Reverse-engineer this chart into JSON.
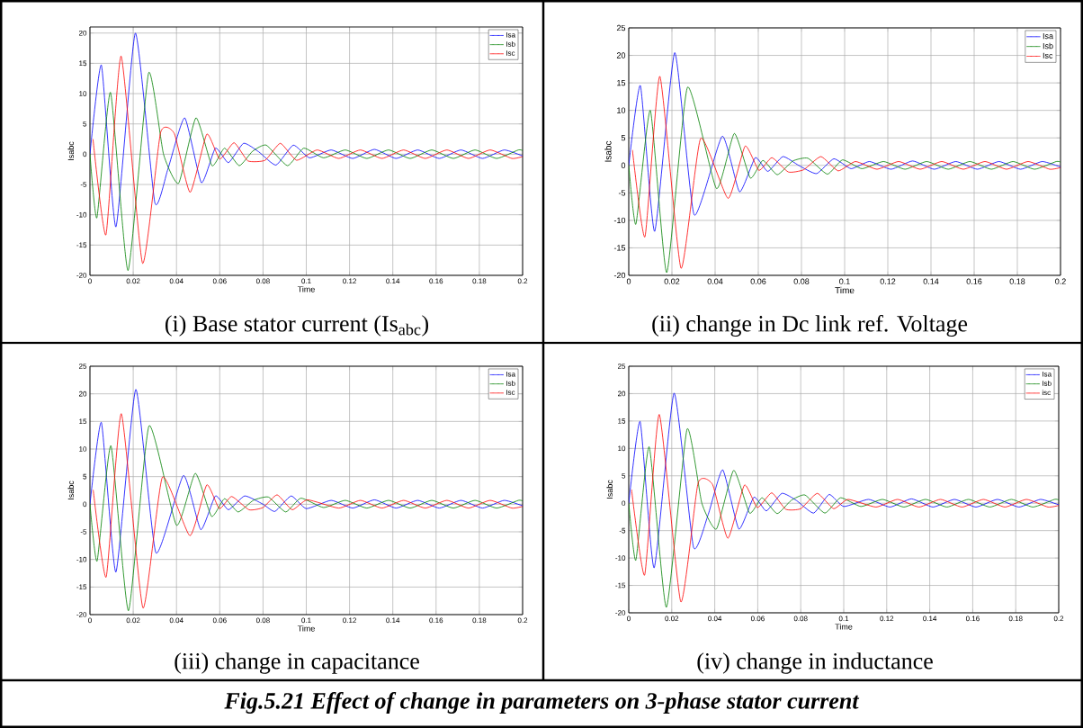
{
  "chart_data": [
    {
      "type": "line",
      "title": "(i) Base stator current (Is$_{abc}$)",
      "xlabel": "Time",
      "ylabel": "Isabc",
      "xlim": [
        0,
        0.2
      ],
      "ylim": [
        -20,
        21
      ],
      "xticks": [
        0,
        0.02,
        0.04,
        0.06,
        0.08,
        0.1,
        0.12,
        0.14,
        0.16,
        0.18,
        0.2
      ],
      "yticks": [
        -20,
        -15,
        -10,
        -5,
        0,
        5,
        10,
        15,
        20
      ],
      "grid": true,
      "legend": "top right",
      "series": [
        {
          "name": "Isa",
          "color": "#0000ff",
          "x": [
            0,
            0.0053,
            0.012,
            0.021,
            0.03,
            0.036,
            0.0438,
            0.0515,
            0.058,
            0.064,
            0.071,
            0.078,
            0.086,
            0.094,
            0.1015,
            0.1115,
            0.1215,
            0.1315,
            0.1415,
            0.1515,
            0.1615,
            0.1715,
            0.1815,
            0.1915,
            0.2
          ],
          "values": [
            0,
            14.7,
            -12,
            20,
            -8,
            -2.5,
            6,
            -4.7,
            1,
            -1.4,
            1.8,
            0.4,
            -1.8,
            1.5,
            -0.6,
            0.7,
            -0.7,
            0.8,
            -0.7,
            0.7,
            -0.7,
            0.7,
            -0.7,
            0.7,
            -0.3
          ]
        },
        {
          "name": "Isb",
          "color": "#008000",
          "x": [
            0,
            0.0032,
            0.0095,
            0.0176,
            0.0271,
            0.034,
            0.041,
            0.049,
            0.0564,
            0.0622,
            0.069,
            0.0752,
            0.0815,
            0.0913,
            0.0988,
            0.108,
            0.118,
            0.128,
            0.138,
            0.148,
            0.158,
            0.168,
            0.178,
            0.188,
            0.198,
            0.2
          ],
          "values": [
            0,
            -10.5,
            10.2,
            -19.2,
            13.4,
            0,
            -4.8,
            6,
            -1.9,
            1,
            -1.9,
            0.5,
            1.5,
            -1.9,
            1,
            -0.6,
            0.7,
            -0.7,
            0.7,
            -0.7,
            0.7,
            -0.7,
            0.7,
            -0.7,
            0.7,
            0.6
          ]
        },
        {
          "name": "Isc",
          "color": "#ff0000",
          "x": [
            0.0014,
            0.0074,
            0.0144,
            0.0243,
            0.0326,
            0.039,
            0.0463,
            0.054,
            0.06,
            0.0666,
            0.073,
            0.081,
            0.088,
            0.0955,
            0.105,
            0.115,
            0.125,
            0.135,
            0.145,
            0.155,
            0.165,
            0.175,
            0.185,
            0.195,
            0.2
          ],
          "values": [
            2.5,
            -13.3,
            16.2,
            -18,
            3.5,
            3.4,
            -6.3,
            3.3,
            -0.8,
            1.9,
            -1.1,
            -1.0,
            1.8,
            -1.0,
            0.7,
            -0.7,
            0.7,
            -0.7,
            0.7,
            -0.7,
            0.7,
            -0.7,
            0.7,
            -0.7,
            -0.4
          ]
        }
      ]
    },
    {
      "type": "line",
      "title": "(ii) change in Dc link ref. Voltage",
      "xlabel": "Time",
      "ylabel": "Isabc",
      "xlim": [
        0,
        0.2
      ],
      "ylim": [
        -20,
        25
      ],
      "xticks": [
        0,
        0.02,
        0.04,
        0.06,
        0.08,
        0.1,
        0.12,
        0.14,
        0.16,
        0.18,
        0.2
      ],
      "yticks": [
        -20,
        -15,
        -10,
        -5,
        0,
        5,
        10,
        15,
        20,
        25
      ],
      "grid": true,
      "legend": "top right",
      "series": [
        {
          "name": "Isa",
          "color": "#0000ff",
          "x": [
            0,
            0.0054,
            0.012,
            0.0213,
            0.0303,
            0.0433,
            0.0513,
            0.0586,
            0.0644,
            0.0714,
            0.0787,
            0.087,
            0.095,
            0.103,
            0.1115,
            0.1215,
            0.1315,
            0.1415,
            0.1515,
            0.1615,
            0.1715,
            0.1815,
            0.1915,
            0.2
          ],
          "values": [
            0,
            14.5,
            -12,
            20.5,
            -9,
            5.3,
            -4.8,
            1.4,
            -1.1,
            1.6,
            0,
            -1.5,
            1.2,
            -0.6,
            0.7,
            -0.7,
            0.8,
            -0.7,
            0.7,
            -0.7,
            0.7,
            -0.7,
            0.7,
            -0.3
          ]
        },
        {
          "name": "Isb",
          "color": "#008000",
          "x": [
            0,
            0.0033,
            0.01,
            0.0176,
            0.0272,
            0.0406,
            0.0489,
            0.0563,
            0.0621,
            0.0688,
            0.076,
            0.083,
            0.092,
            0.099,
            0.108,
            0.118,
            0.128,
            0.138,
            0.148,
            0.158,
            0.168,
            0.178,
            0.188,
            0.198,
            0.2
          ],
          "values": [
            0,
            -10.7,
            10,
            -19.5,
            14.2,
            -4.2,
            5.8,
            -2.3,
            0.9,
            -1.7,
            0.8,
            1.3,
            -1.6,
            1,
            -0.6,
            0.7,
            -0.7,
            0.7,
            -0.7,
            0.7,
            -0.7,
            0.7,
            -0.7,
            0.7,
            0.6
          ]
        },
        {
          "name": "Isc",
          "color": "#ff0000",
          "x": [
            0.0017,
            0.0075,
            0.0144,
            0.0242,
            0.0333,
            0.046,
            0.0539,
            0.0603,
            0.0663,
            0.0739,
            0.081,
            0.089,
            0.097,
            0.105,
            0.115,
            0.125,
            0.135,
            0.145,
            0.155,
            0.165,
            0.175,
            0.185,
            0.195,
            0.2
          ],
          "values": [
            2.8,
            -13,
            16.2,
            -18.7,
            4.9,
            -6,
            3.5,
            -0.9,
            1.4,
            -1.2,
            -0.8,
            1.6,
            -1,
            0.7,
            -0.7,
            0.7,
            -0.7,
            0.7,
            -0.7,
            0.7,
            -0.7,
            0.7,
            -0.7,
            -0.4
          ]
        }
      ]
    },
    {
      "type": "line",
      "title": "(iii) change in capacitance",
      "xlabel": "Time",
      "ylabel": "Isabc",
      "xlim": [
        0,
        0.2
      ],
      "ylim": [
        -20,
        25
      ],
      "xticks": [
        0,
        0.02,
        0.04,
        0.06,
        0.08,
        0.1,
        0.12,
        0.14,
        0.16,
        0.18,
        0.2
      ],
      "yticks": [
        -20,
        -15,
        -10,
        -5,
        0,
        5,
        10,
        15,
        20,
        25
      ],
      "grid": true,
      "legend": "top right",
      "series": [
        {
          "name": "Isa",
          "color": "#0000ff",
          "x": [
            0,
            0.0053,
            0.012,
            0.0212,
            0.0305,
            0.0432,
            0.0512,
            0.058,
            0.064,
            0.0715,
            0.08,
            0.0855,
            0.093,
            0.1,
            0.1115,
            0.1215,
            0.1315,
            0.1415,
            0.1515,
            0.1615,
            0.1715,
            0.1815,
            0.1915,
            0.2
          ],
          "values": [
            0,
            14.8,
            -12.3,
            20.8,
            -8.8,
            5.2,
            -4.6,
            1.5,
            -1,
            1.5,
            0,
            -1.3,
            1.5,
            -0.8,
            0.7,
            -0.7,
            0.8,
            -0.7,
            0.7,
            -0.7,
            0.7,
            -0.7,
            0.7,
            -0.3
          ]
        },
        {
          "name": "Isb",
          "color": "#008000",
          "x": [
            0,
            0.0033,
            0.0097,
            0.0178,
            0.0273,
            0.04,
            0.0487,
            0.0562,
            0.0622,
            0.0685,
            0.0755,
            0.0825,
            0.0905,
            0.0975,
            0.108,
            0.118,
            0.128,
            0.138,
            0.148,
            0.158,
            0.168,
            0.178,
            0.188,
            0.198,
            0.2
          ],
          "values": [
            0,
            -10.3,
            10.6,
            -19.3,
            14.2,
            -3.8,
            5.6,
            -2.2,
            1,
            -1.4,
            0.7,
            1.3,
            -1.4,
            1.1,
            -0.6,
            0.7,
            -0.7,
            0.7,
            -0.7,
            0.7,
            -0.7,
            0.7,
            -0.7,
            0.7,
            0.6
          ]
        },
        {
          "name": "Isc",
          "color": "#ff0000",
          "x": [
            0.0015,
            0.0075,
            0.0145,
            0.0245,
            0.0335,
            0.0462,
            0.054,
            0.0598,
            0.0655,
            0.0735,
            0.08,
            0.0865,
            0.0935,
            0.1005,
            0.115,
            0.125,
            0.135,
            0.145,
            0.155,
            0.165,
            0.175,
            0.185,
            0.195,
            0.2
          ],
          "values": [
            2.6,
            -13.2,
            16.4,
            -18.8,
            4.9,
            -5.7,
            3.5,
            -0.8,
            1.4,
            -1,
            -0.6,
            1.7,
            -1,
            0.8,
            -0.7,
            0.7,
            -0.7,
            0.7,
            -0.7,
            0.7,
            -0.7,
            0.7,
            -0.7,
            -0.4
          ]
        }
      ]
    },
    {
      "type": "line",
      "title": "(iv) change in inductance",
      "xlabel": "Time",
      "ylabel": "Isabc",
      "xlim": [
        0,
        0.2
      ],
      "ylim": [
        -20,
        25
      ],
      "xticks": [
        0,
        0.02,
        0.04,
        0.06,
        0.08,
        0.1,
        0.12,
        0.14,
        0.16,
        0.18,
        0.2
      ],
      "yticks": [
        -20,
        -15,
        -10,
        -5,
        0,
        5,
        10,
        15,
        20,
        25
      ],
      "grid": true,
      "legend": "top right",
      "annotations": [
        "Fig.5.21 Effect of change in parameters on 3-phase stator current"
      ],
      "series": [
        {
          "name": "Isa",
          "color": "#0000ff",
          "x": [
            0,
            0.0053,
            0.0118,
            0.0211,
            0.0301,
            0.037,
            0.0437,
            0.0512,
            0.0582,
            0.064,
            0.0712,
            0.078,
            0.086,
            0.0932,
            0.1,
            0.1115,
            0.1215,
            0.1315,
            0.1415,
            0.1515,
            0.1615,
            0.1715,
            0.1815,
            0.1915,
            0.2
          ],
          "values": [
            0,
            14.9,
            -11.8,
            20.1,
            -8,
            -2,
            6.1,
            -4.7,
            1.1,
            -1.4,
            1.8,
            0.5,
            -1.8,
            1.6,
            -0.6,
            0.7,
            -0.7,
            0.8,
            -0.7,
            0.7,
            -0.7,
            0.7,
            -0.7,
            0.7,
            -0.3
          ]
        },
        {
          "name": "Isb",
          "color": "#008000",
          "x": [
            0,
            0.0033,
            0.0095,
            0.0175,
            0.0271,
            0.034,
            0.0408,
            0.0488,
            0.0562,
            0.062,
            0.069,
            0.0755,
            0.082,
            0.0912,
            0.0985,
            0.108,
            0.118,
            0.128,
            0.138,
            0.148,
            0.158,
            0.168,
            0.178,
            0.188,
            0.198,
            0.2
          ],
          "values": [
            0,
            -10.4,
            10.3,
            -19,
            13.5,
            0,
            -4.7,
            6,
            -1.8,
            1,
            -1.9,
            0.5,
            1.5,
            -1.8,
            1,
            -0.6,
            0.7,
            -0.7,
            0.7,
            -0.7,
            0.7,
            -0.7,
            0.7,
            -0.7,
            0.7,
            0.6
          ]
        },
        {
          "name": "isc",
          "color": "#ff0000",
          "x": [
            0.0013,
            0.0074,
            0.0142,
            0.0242,
            0.0322,
            0.039,
            0.0461,
            0.0538,
            0.0598,
            0.0665,
            0.073,
            0.08,
            0.0877,
            0.0953,
            0.102,
            0.115,
            0.125,
            0.135,
            0.145,
            0.155,
            0.165,
            0.175,
            0.185,
            0.195,
            0.2
          ],
          "values": [
            2.5,
            -13.1,
            16.2,
            -18,
            3.6,
            3.4,
            -6.4,
            3.3,
            -0.8,
            1.9,
            -1.1,
            -1,
            1.8,
            -1,
            0.7,
            -0.7,
            0.7,
            -0.7,
            0.7,
            -0.7,
            0.7,
            -0.7,
            0.7,
            -0.7,
            -0.4
          ]
        }
      ]
    }
  ]
}
